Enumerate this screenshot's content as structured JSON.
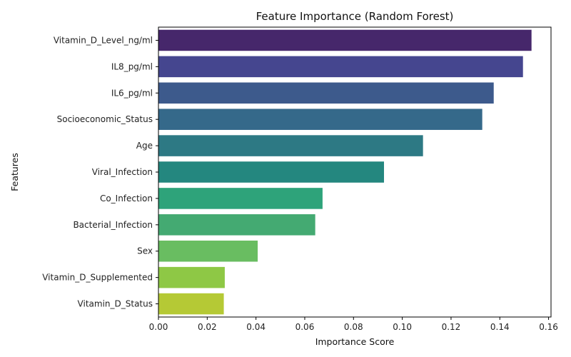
{
  "chart_data": {
    "type": "bar",
    "orientation": "horizontal",
    "title": "Feature Importance (Random Forest)",
    "xlabel": "Importance Score",
    "ylabel": "Features",
    "xlim": [
      0,
      0.161
    ],
    "xticks": [
      0.0,
      0.02,
      0.04,
      0.06,
      0.08,
      0.1,
      0.12,
      0.14,
      0.16
    ],
    "xtick_labels": [
      "0.00",
      "0.02",
      "0.04",
      "0.06",
      "0.08",
      "0.10",
      "0.12",
      "0.14",
      "0.16"
    ],
    "grid": false,
    "categories": [
      "Vitamin_D_Level_ng/ml",
      "IL8_pg/ml",
      "IL6_pg/ml",
      "Socioeconomic_Status",
      "Age",
      "Viral_Infection",
      "Co_Infection",
      "Bacterial_Infection",
      "Sex",
      "Vitamin_D_Supplemented",
      "Vitamin_D_Status"
    ],
    "values": [
      0.153,
      0.1495,
      0.1375,
      0.1328,
      0.1085,
      0.0925,
      0.0673,
      0.0643,
      0.0407,
      0.0272,
      0.0268
    ],
    "colors": [
      "#46276b",
      "#45468f",
      "#3d5a8c",
      "#35698a",
      "#2d7984",
      "#24877f",
      "#2ea37a",
      "#44aa72",
      "#69bd61",
      "#8ec845",
      "#b5c935"
    ]
  }
}
